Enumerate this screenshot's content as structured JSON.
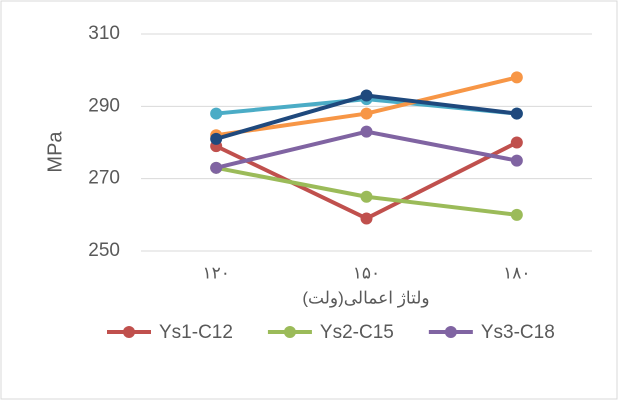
{
  "chart_data": {
    "type": "line",
    "y_label": "MPa",
    "x_label": "ولتاژ اعمالی(ولت)",
    "categories": [
      "۱۲۰",
      "۱۵۰",
      "۱۸۰"
    ],
    "series": [
      {
        "name": "Ys1-C12",
        "color": "#c0504d",
        "values": [
          279,
          259,
          280
        ]
      },
      {
        "name": "Ys2-C15",
        "color": "#9bbb59",
        "values": [
          273,
          265,
          260
        ]
      },
      {
        "name": "Ys3-C18",
        "color": "#8064a2",
        "values": [
          273,
          283,
          275
        ]
      },
      {
        "color": "#4bacc6",
        "values": [
          288,
          292,
          288
        ]
      },
      {
        "color": "#f79646",
        "values": [
          282,
          288,
          298
        ]
      },
      {
        "color": "#1f497d",
        "values": [
          281,
          293,
          288
        ]
      }
    ],
    "ylim": [
      250,
      310
    ],
    "yticks": [
      250,
      270,
      290,
      310
    ],
    "grid": true
  }
}
